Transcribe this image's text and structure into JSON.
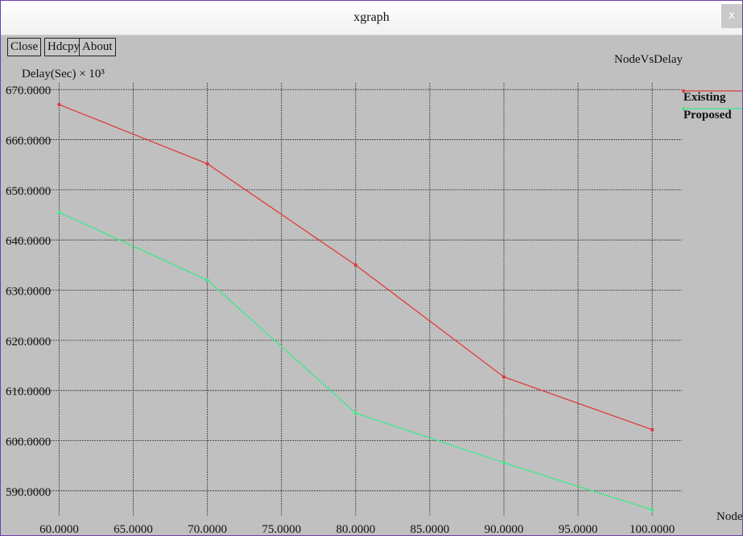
{
  "window": {
    "title": "xgraph",
    "close_glyph": "x"
  },
  "toolbar": {
    "close_label": "Close",
    "hdcpy_label": "Hdcpy",
    "about_label": "About"
  },
  "colors": {
    "existing": "#e03a3a",
    "proposed": "#3ee88a",
    "background": "#c0c0c0",
    "grid": "#333333"
  },
  "chart_data": {
    "type": "line",
    "title": "NodeVsDelay",
    "ylabel": "Delay(Sec) × 10³",
    "xlabel": "Nodes",
    "x": [
      60,
      70,
      80,
      90,
      100
    ],
    "series": [
      {
        "name": "Existing",
        "values": [
          667,
          655.2,
          635,
          612.7,
          602.2
        ]
      },
      {
        "name": "Proposed",
        "values": [
          645.5,
          632,
          605.5,
          595.6,
          586.2
        ]
      }
    ],
    "xlim": [
      56.5,
      102
    ],
    "ylim": [
      585,
      671
    ],
    "x_ticks": [
      "60.0000",
      "65.0000",
      "70.0000",
      "75.0000",
      "80.0000",
      "85.0000",
      "90.0000",
      "95.0000",
      "100.0000"
    ],
    "y_ticks": [
      "670.0000",
      "660.0000",
      "650.0000",
      "640.0000",
      "630.0000",
      "620.0000",
      "610.0000",
      "600.0000",
      "590.0000"
    ],
    "grid": true,
    "legend_position": "top-right"
  }
}
